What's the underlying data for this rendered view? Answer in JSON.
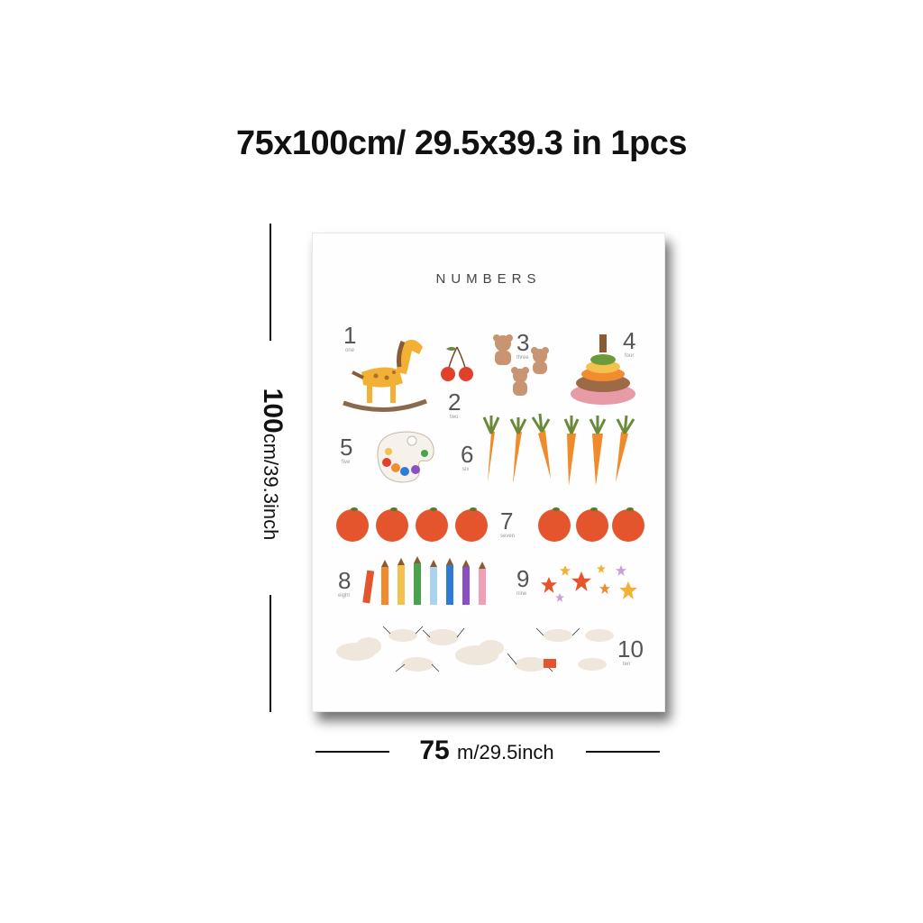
{
  "heading": {
    "width_cm": "75",
    "x1": "x",
    "height_cm": "100cm/",
    "width_in": "29.5",
    "x2": "x",
    "height_in": "39.3",
    "in_unit": "in",
    "qty": "1",
    "qty_unit": "pcs"
  },
  "height_dim": {
    "value": "100",
    "unit": "cm/39.3inch"
  },
  "width_dim": {
    "value": "75",
    "unit": "m/29.5inch"
  },
  "poster": {
    "title": "NUMBERS",
    "numbers": [
      {
        "digit": "1",
        "word": "one"
      },
      {
        "digit": "2",
        "word": "two"
      },
      {
        "digit": "3",
        "word": "three"
      },
      {
        "digit": "4",
        "word": "four"
      },
      {
        "digit": "5",
        "word": "five"
      },
      {
        "digit": "6",
        "word": "six"
      },
      {
        "digit": "7",
        "word": "seven"
      },
      {
        "digit": "8",
        "word": "eight"
      },
      {
        "digit": "9",
        "word": "nine"
      },
      {
        "digit": "10",
        "word": "ten"
      }
    ]
  },
  "colors": {
    "orange": "#e5552d",
    "carrot": "#f08a2a",
    "horse": "#f2b134",
    "cloud": "#efe6dc"
  }
}
